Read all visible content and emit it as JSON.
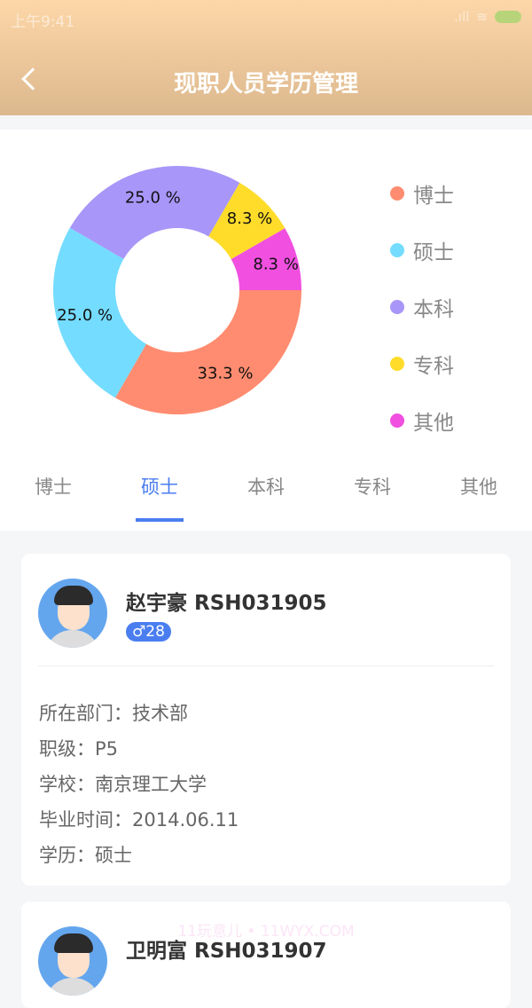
{
  "status_bar": {
    "time": "上午9:41"
  },
  "header": {
    "title": "现职人员学历管理"
  },
  "chart_data": {
    "type": "pie",
    "donut": true,
    "categories": [
      "博士",
      "硕士",
      "本科",
      "专科",
      "其他"
    ],
    "values": [
      33.3,
      25.0,
      25.0,
      8.3,
      8.3
    ],
    "labels": [
      "33.3 %",
      "25.0 %",
      "25.0 %",
      "8.3 %",
      "8.3 %"
    ],
    "colors": [
      "#ff8c70",
      "#74dcff",
      "#a896f8",
      "#ffdc2a",
      "#f04fe0"
    ],
    "legend": "right"
  },
  "tabs": [
    {
      "label": "博士"
    },
    {
      "label": "硕士",
      "active": true
    },
    {
      "label": "本科"
    },
    {
      "label": "专科"
    },
    {
      "label": "其他"
    }
  ],
  "cards": [
    {
      "name": "赵宇豪 RSH031905",
      "gender_icon": "male-icon",
      "gender": "♂",
      "age": "28",
      "rows": [
        {
          "label": "所在部门：",
          "value": "技术部"
        },
        {
          "label": "职级：",
          "value": "P5"
        },
        {
          "label": "学校：",
          "value": "南京理工大学"
        },
        {
          "label": "毕业时间：",
          "value": "2014.06.11"
        },
        {
          "label": "学历：",
          "value": "硕士"
        }
      ]
    },
    {
      "name": "卫明富 RSH031907"
    }
  ],
  "watermark": "11玩意儿 • 11WYX.COM"
}
